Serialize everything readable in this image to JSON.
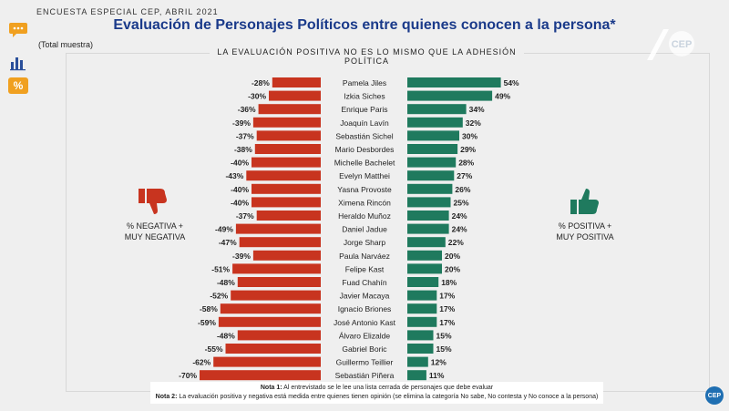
{
  "header": {
    "survey": "ENCUESTA ESPECIAL CEP, ABRIL 2021",
    "title": "Evaluación de Personajes Políticos entre quienes conocen a la persona*",
    "sample": "(Total muestra)",
    "subtitle": "LA EVALUACIÓN POSITIVA NO ES LO MISMO QUE LA ADHESIÓN POLÍTICA"
  },
  "sidebar": {
    "icons": [
      "speech-bubble-icon",
      "bar-chart-icon",
      "percent-icon"
    ],
    "percent_symbol": "%"
  },
  "legend": {
    "negative_line1": "% NEGATIVA +",
    "negative_line2": "MUY NEGATIVA",
    "positive_line1": "% POSITIVA +",
    "positive_line2": "MUY POSITIVA"
  },
  "notes": {
    "note1_label": "Nota 1:",
    "note1_text": "Al entrevistado se le lee una lista cerrada de personajes que debe evaluar",
    "note2_label": "Nota 2:",
    "note2_text": "La evaluación positiva y negativa está medida entre quienes tienen opinión (se elimina la categoría No sabe, No contesta y No conoce a la persona)"
  },
  "badge": "CEP",
  "colors": {
    "negative": "#c8341f",
    "positive": "#1f7a5e",
    "title": "#1a3a8a",
    "icon_orange": "#f0a020",
    "icon_blue": "#2a4f9a"
  },
  "chart_data": {
    "type": "bar",
    "categories": [
      "Pamela Jiles",
      "Izkia Siches",
      "Enrique Paris",
      "Joaquín Lavín",
      "Sebastián Sichel",
      "Mario Desbordes",
      "Michelle Bachelet",
      "Evelyn Matthei",
      "Yasna Provoste",
      "Ximena Rincón",
      "Heraldo Muñoz",
      "Daniel Jadue",
      "Jorge Sharp",
      "Paula Narváez",
      "Felipe Kast",
      "Fuad Chahín",
      "Javier Macaya",
      "Ignacio Briones",
      "José Antonio Kast",
      "Álvaro Elizalde",
      "Gabriel Boric",
      "Guillermo Teillier",
      "Sebastián Piñera"
    ],
    "series": [
      {
        "name": "% NEGATIVA + MUY NEGATIVA",
        "values": [
          -28,
          -30,
          -36,
          -39,
          -37,
          -38,
          -40,
          -43,
          -40,
          -40,
          -37,
          -49,
          -47,
          -39,
          -51,
          -48,
          -52,
          -58,
          -59,
          -48,
          -55,
          -62,
          -70
        ]
      },
      {
        "name": "% POSITIVA + MUY POSITIVA",
        "values": [
          54,
          49,
          34,
          32,
          30,
          29,
          28,
          27,
          26,
          25,
          24,
          24,
          22,
          20,
          20,
          18,
          17,
          17,
          17,
          15,
          15,
          12,
          11
        ]
      }
    ],
    "value_labels_neg": [
      "-28%",
      "-30%",
      "-36%",
      "-39%",
      "-37%",
      "-38%",
      "-40%",
      "-43%",
      "-40%",
      "-40%",
      "-37%",
      "-49%",
      "-47%",
      "-39%",
      "-51%",
      "-48%",
      "-52%",
      "-58%",
      "-59%",
      "-48%",
      "-55%",
      "-62%",
      "-70%"
    ],
    "value_labels_pos": [
      "54%",
      "49%",
      "34%",
      "32%",
      "30%",
      "29%",
      "28%",
      "27%",
      "26%",
      "25%",
      "24%",
      "24%",
      "22%",
      "20%",
      "20%",
      "18%",
      "17%",
      "17%",
      "17%",
      "15%",
      "15%",
      "12%",
      "11%"
    ]
  }
}
